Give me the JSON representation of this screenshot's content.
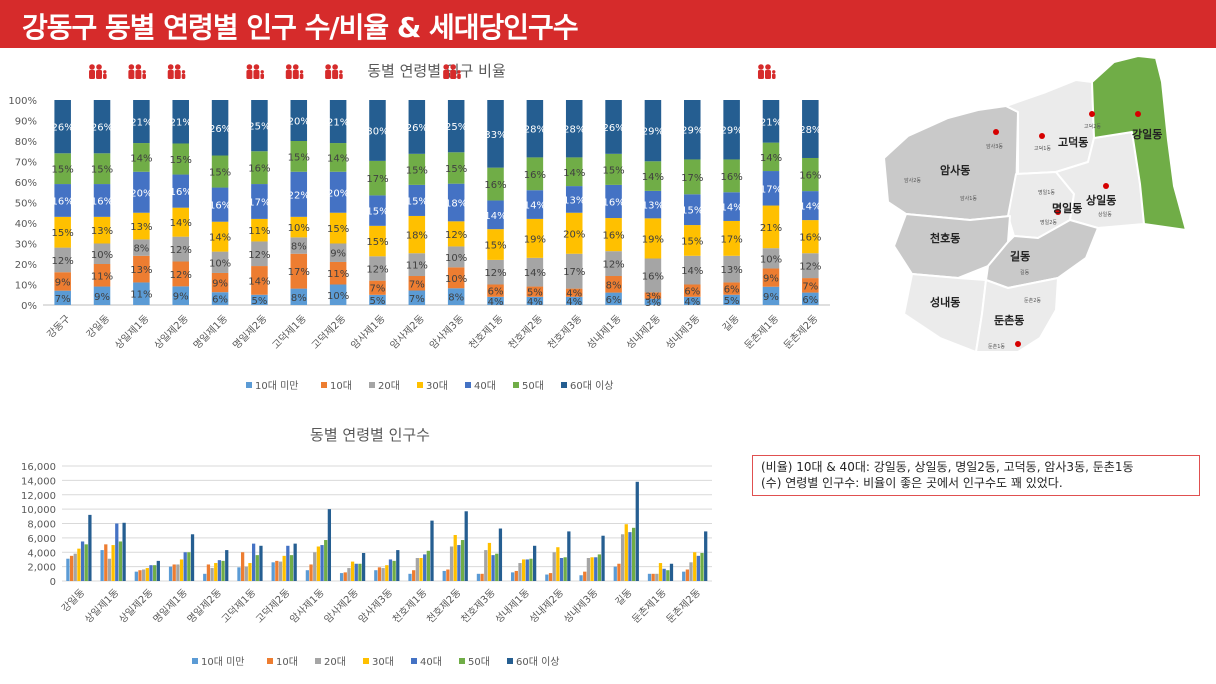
{
  "title": "강동구 동별 연령별 인구 수/비율 & 세대당인구수",
  "colors": {
    "title_bg": "#d62b2b",
    "series": [
      "#5b9bd5",
      "#ed7d31",
      "#a5a5a5",
      "#ffc000",
      "#4472c4",
      "#70ad47",
      "#255e91"
    ],
    "map_highlight": "#70ad47",
    "map_dark": "#c9c9c9",
    "map_light": "#ebebeb"
  },
  "icons": [
    "family-icon"
  ],
  "chart_data": [
    {
      "type": "bar",
      "stacked": true,
      "percent": true,
      "title": "동별 연령별 인구 비율",
      "categories": [
        "강동구",
        "강일동",
        "상일제1동",
        "상일제2동",
        "명일제1동",
        "명일제2동",
        "고덕제1동",
        "고덕제2동",
        "암사제1동",
        "암사제2동",
        "암사제3동",
        "천호제1동",
        "천호제2동",
        "천호제3동",
        "성내제1동",
        "성내제2동",
        "성내제3동",
        "길동",
        "둔촌제1동",
        "둔촌제2동"
      ],
      "series": [
        {
          "name": "10대 미만",
          "values": [
            7,
            9,
            11,
            9,
            6,
            5,
            8,
            10,
            5,
            7,
            8,
            4,
            4,
            4,
            6,
            3,
            4,
            5,
            9,
            6
          ]
        },
        {
          "name": "10대",
          "values": [
            9,
            11,
            13,
            12,
            9,
            14,
            17,
            11,
            7,
            7,
            10,
            6,
            5,
            4,
            8,
            3,
            6,
            6,
            9,
            7
          ]
        },
        {
          "name": "20대",
          "values": [
            12,
            10,
            8,
            12,
            10,
            12,
            8,
            9,
            12,
            11,
            10,
            12,
            14,
            17,
            12,
            16,
            14,
            13,
            10,
            12
          ]
        },
        {
          "name": "30대",
          "values": [
            15,
            13,
            13,
            14,
            14,
            11,
            10,
            15,
            15,
            18,
            12,
            15,
            19,
            20,
            16,
            19,
            15,
            17,
            21,
            16
          ]
        },
        {
          "name": "40대",
          "values": [
            16,
            16,
            20,
            16,
            16,
            17,
            22,
            20,
            15,
            15,
            18,
            14,
            14,
            13,
            16,
            13,
            15,
            14,
            17,
            14
          ]
        },
        {
          "name": "50대",
          "values": [
            15,
            15,
            14,
            15,
            15,
            16,
            15,
            14,
            17,
            15,
            15,
            16,
            16,
            14,
            15,
            14,
            17,
            16,
            14,
            16
          ]
        },
        {
          "name": "60대 이상",
          "values": [
            26,
            26,
            21,
            21,
            26,
            25,
            20,
            21,
            30,
            26,
            25,
            33,
            28,
            28,
            26,
            29,
            29,
            29,
            21,
            28
          ]
        }
      ],
      "y_ticks": [
        "0%",
        "10%",
        "20%",
        "30%",
        "40%",
        "50%",
        "60%",
        "70%",
        "80%",
        "90%",
        "100%"
      ],
      "ylim": [
        0,
        100
      ],
      "legend_position": "bottom",
      "highlighted_categories": [
        "강일동",
        "상일제1동",
        "상일제2동",
        "명일제2동",
        "고덕제1동",
        "고덕제2동",
        "암사제3동",
        "둔촌제1동"
      ]
    },
    {
      "type": "bar",
      "stacked": false,
      "title": "동별 연령별 인구수",
      "categories": [
        "강일동",
        "상일제1동",
        "상일제2동",
        "명일제1동",
        "명일제2동",
        "고덕제1동",
        "고덕제2동",
        "암사제1동",
        "암사제2동",
        "암사제3동",
        "천호제1동",
        "천호제2동",
        "천호제3동",
        "성내제1동",
        "성내제2동",
        "성내제3동",
        "길동",
        "둔촌제1동",
        "둔촌제2동"
      ],
      "series": [
        {
          "name": "10대 미만",
          "values": [
            3100,
            4300,
            1300,
            2000,
            1000,
            1900,
            2600,
            1500,
            1100,
            1500,
            1000,
            1400,
            1000,
            1200,
            900,
            800,
            2000,
            1000,
            1300
          ]
        },
        {
          "name": "10대",
          "values": [
            3500,
            5100,
            1500,
            2300,
            2300,
            4000,
            2800,
            2300,
            1200,
            1900,
            1500,
            1600,
            1000,
            1400,
            1100,
            1300,
            2400,
            1000,
            1600
          ]
        },
        {
          "name": "20대",
          "values": [
            3800,
            3100,
            1600,
            2300,
            1800,
            2000,
            2700,
            4000,
            1800,
            1800,
            3200,
            4800,
            4300,
            2500,
            4000,
            3200,
            6500,
            1000,
            2600
          ]
        },
        {
          "name": "30대",
          "values": [
            4500,
            5000,
            1800,
            3000,
            2500,
            2500,
            3500,
            4800,
            2700,
            2200,
            3200,
            6400,
            5300,
            3000,
            4700,
            3300,
            7900,
            2500,
            4000
          ]
        },
        {
          "name": "40대",
          "values": [
            5500,
            8000,
            2200,
            4000,
            2900,
            5200,
            4900,
            5000,
            2400,
            3000,
            3700,
            5000,
            3600,
            3000,
            3200,
            3300,
            6800,
            1700,
            3500
          ]
        },
        {
          "name": "50대",
          "values": [
            5100,
            5500,
            2200,
            4000,
            2800,
            3600,
            3600,
            5700,
            2400,
            2800,
            4200,
            5700,
            3800,
            3100,
            3300,
            3700,
            7400,
            1500,
            3900
          ]
        },
        {
          "name": "60대 이상",
          "values": [
            9200,
            8100,
            2800,
            6500,
            4300,
            4900,
            5200,
            10000,
            3900,
            4300,
            8400,
            9700,
            7300,
            4900,
            6900,
            6300,
            13800,
            2400,
            6900
          ]
        }
      ],
      "y_ticks": [
        "0",
        "2,000",
        "4,000",
        "6,000",
        "8,000",
        "10,000",
        "12,000",
        "14,000",
        "16,000"
      ],
      "ylim": [
        0,
        16000
      ],
      "grid": true,
      "legend_position": "bottom"
    }
  ],
  "map": {
    "labels_major": [
      "강일동",
      "암사동",
      "고덕동",
      "명일동",
      "상일동",
      "천호동",
      "길동",
      "성내동",
      "둔촌동"
    ],
    "labels_minor": [
      "암사3동",
      "암사1동",
      "암사2동",
      "고덕1동",
      "고덕2동",
      "명일1동",
      "명일2동",
      "상일동",
      "길동",
      "둔촌2동",
      "둔촌1동"
    ]
  },
  "note": {
    "line1": "(비율) 10대 & 40대: 강일동, 상일동, 명일2동, 고덕동, 암사3동, 둔촌1동",
    "line2": "(수) 연령별 인구수: 비율이 좋은 곳에서 인구수도 꽤 있었다."
  }
}
